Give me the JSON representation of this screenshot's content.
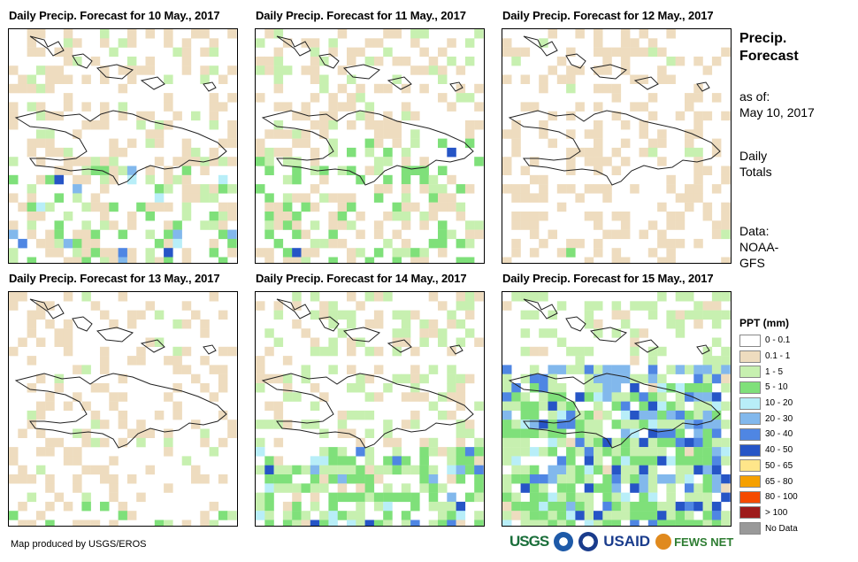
{
  "panels": [
    {
      "title": "Daily Precip. Forecast for 10 May., 2017"
    },
    {
      "title": "Daily Precip. Forecast for 11 May., 2017"
    },
    {
      "title": "Daily Precip. Forecast for 12 May., 2017"
    },
    {
      "title": "Daily Precip. Forecast for 13 May., 2017"
    },
    {
      "title": "Daily Precip. Forecast for 14 May., 2017"
    },
    {
      "title": "Daily Precip. Forecast for 15 May., 2017"
    }
  ],
  "side": {
    "title_line1": "Precip.",
    "title_line2": "Forecast",
    "asof_line1": "as of:",
    "asof_line2": "May 10, 2017",
    "daily_line1": "Daily",
    "daily_line2": "Totals",
    "data_line1": "Data:",
    "data_line2": "NOAA-",
    "data_line3": "GFS"
  },
  "legend": {
    "title": "PPT (mm)",
    "items": [
      {
        "label": "0 - 0.1",
        "color": "#ffffff"
      },
      {
        "label": "0.1 - 1",
        "color": "#eedcbf"
      },
      {
        "label": "1 - 5",
        "color": "#c7f0b0"
      },
      {
        "label": "5 - 10",
        "color": "#7fe07a"
      },
      {
        "label": "10 - 20",
        "color": "#b8eef8"
      },
      {
        "label": "20 - 30",
        "color": "#82b8ec"
      },
      {
        "label": "30 - 40",
        "color": "#4f86e3"
      },
      {
        "label": "40 - 50",
        "color": "#2655c6"
      },
      {
        "label": "50 - 65",
        "color": "#ffe68a"
      },
      {
        "label": "65 - 80",
        "color": "#f5a000"
      },
      {
        "label": "80 - 100",
        "color": "#f54a00"
      },
      {
        "label": "> 100",
        "color": "#9e1b1b"
      },
      {
        "label": "No Data",
        "color": "#999999"
      }
    ]
  },
  "footer": {
    "credit": "Map produced by USGS/EROS",
    "logo_usgs": "USGS",
    "logo_usaid": "USAID",
    "logo_fews": "FEWS NET"
  }
}
